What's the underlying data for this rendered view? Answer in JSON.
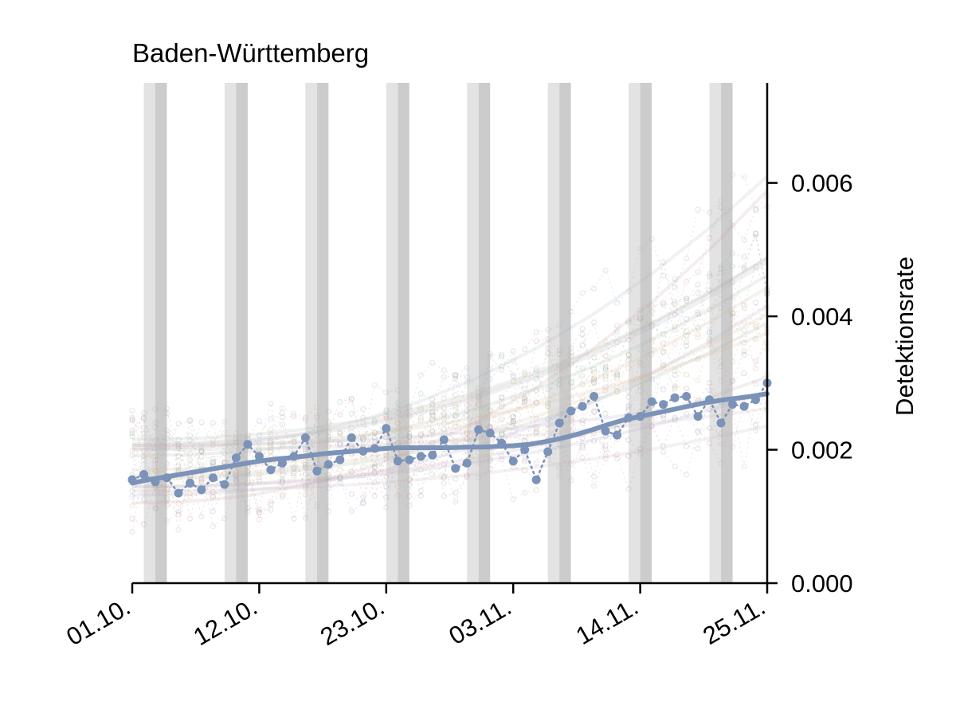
{
  "chart_data": {
    "type": "line",
    "title": "Baden-Württemberg",
    "xlabel": "",
    "ylabel": "Detektionsrate",
    "x_range": [
      "01.10.",
      "25.11."
    ],
    "xlim_days": [
      0,
      55
    ],
    "ylim": [
      0,
      0.0075
    ],
    "x_tick_labels": [
      "01.10.",
      "12.10.",
      "23.10.",
      "03.11.",
      "14.11.",
      "25.11."
    ],
    "x_tick_days": [
      0,
      11,
      22,
      33,
      44,
      55
    ],
    "y_ticks": [
      0,
      0.002,
      0.004,
      0.006
    ],
    "y_tick_labels": [
      "0.000",
      "0.002",
      "0.004",
      "0.006"
    ],
    "y_axis_side": "right",
    "grid": false,
    "weekend_shading": {
      "saturday_color": "#e3e3e3",
      "sunday_color": "#cccccc",
      "saturday_days": [
        1.5,
        8.5,
        15.5,
        22.5,
        29.5,
        36.5,
        43.5,
        50.5
      ]
    },
    "series": [
      {
        "color": "#7b93b8",
        "points_days": [
          0,
          1,
          2,
          3,
          4,
          5,
          6,
          7,
          8,
          9,
          10,
          11,
          12,
          13,
          14,
          15,
          16,
          17,
          18,
          19,
          20,
          21,
          22,
          23,
          24,
          25,
          26,
          27,
          28,
          29,
          30,
          31,
          32,
          33,
          34,
          35,
          36,
          37,
          38,
          39,
          40,
          41,
          42,
          43,
          44,
          45,
          46,
          47,
          48,
          49,
          50,
          51,
          52,
          53,
          54,
          55
        ],
        "points": [
          0.00155,
          0.00163,
          0.00152,
          0.00158,
          0.00135,
          0.0015,
          0.0014,
          0.00158,
          0.00148,
          0.00188,
          0.00208,
          0.0019,
          0.0017,
          0.0018,
          0.0019,
          0.00218,
          0.00168,
          0.00178,
          0.00185,
          0.00218,
          0.00198,
          0.00202,
          0.00232,
          0.00183,
          0.00185,
          0.0019,
          0.00192,
          0.00215,
          0.00172,
          0.0018,
          0.0023,
          0.00225,
          0.0021,
          0.00183,
          0.002,
          0.00155,
          0.00197,
          0.0024,
          0.00258,
          0.00265,
          0.0028,
          0.00228,
          0.00222,
          0.00248,
          0.0025,
          0.00272,
          0.00268,
          0.00278,
          0.0028,
          0.0025,
          0.00275,
          0.0024,
          0.00268,
          0.00265,
          0.00275,
          0.003
        ],
        "trend": [
          0.0015,
          0.00155,
          0.00159,
          0.00163,
          0.00167,
          0.00171,
          0.00175,
          0.00179,
          0.00183,
          0.00186,
          0.00188,
          0.00191,
          0.00194,
          0.00196,
          0.00198,
          0.002,
          0.00202,
          0.00203,
          0.00203,
          0.00203,
          0.00203,
          0.00204,
          0.00204,
          0.00205,
          0.00206,
          0.00208,
          0.00212,
          0.00217,
          0.00223,
          0.0023,
          0.00238,
          0.00245,
          0.0025,
          0.00255,
          0.0026,
          0.00265,
          0.0027,
          0.00274,
          0.00277,
          0.0028,
          0.00284
        ]
      }
    ]
  }
}
